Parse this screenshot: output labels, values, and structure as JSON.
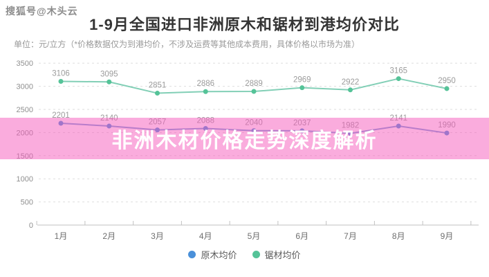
{
  "watermark": "搜狐号@木头云",
  "header": {
    "title": "1-9月全国进口非洲原木和锯材到港均价对比",
    "subtitle": "单位：元/立方（*价格数据仅为到港均价，不涉及运费等其他成本费用，具体价格以市场为准）"
  },
  "banner": {
    "text": "非洲木材价格走势深度解析",
    "color": "#f559bb",
    "css_rgba": "rgba(245,89,187,0.5)",
    "text_color": "#ffffff"
  },
  "chart_data": {
    "type": "line",
    "categories": [
      "1月",
      "2月",
      "3月",
      "4月",
      "5月",
      "6月",
      "7月",
      "8月",
      "9月"
    ],
    "series": [
      {
        "name": "原木均价",
        "line_color": "#7b9fd9",
        "dot_color": "#4a90d9",
        "values": [
          2201,
          2140,
          2057,
          2088,
          2040,
          2037,
          1982,
          2141,
          1990
        ]
      },
      {
        "name": "锯材均价",
        "line_color": "#82cfb6",
        "dot_color": "#55c398",
        "values": [
          3106,
          3095,
          2851,
          2886,
          2889,
          2969,
          2922,
          3165,
          2950
        ]
      }
    ],
    "title": "1-9月全国进口非洲原木和锯材到港均价对比",
    "xlabel": "",
    "ylabel": "元/立方",
    "ylim": [
      0,
      3500
    ],
    "yticks": [
      0,
      500,
      1000,
      1500,
      2000,
      2500,
      3000,
      3500
    ],
    "grid": "dashed-horizontal",
    "legend_position": "bottom",
    "data_labels": true,
    "label_color": "#9b9b9b",
    "axis_label_color": "#8f8f8f",
    "axis_line_color": "#c0c0c0",
    "grid_color": "#dddddd"
  }
}
